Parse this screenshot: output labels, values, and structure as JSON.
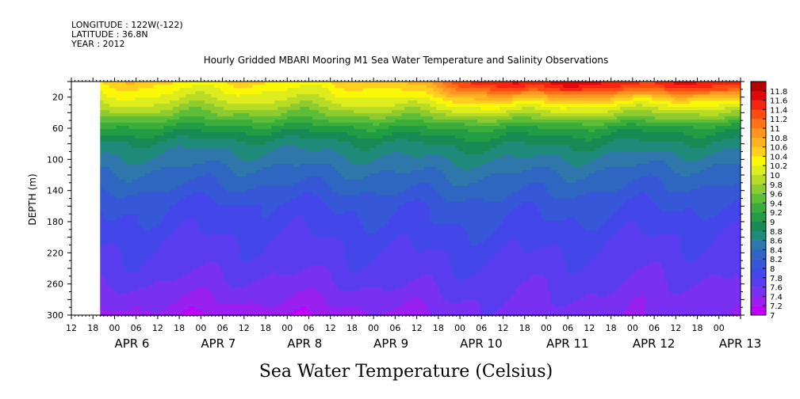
{
  "header": {
    "longitude": "LONGITUDE : 122W(-122)",
    "latitude": "LATITUDE : 36.8N",
    "year": "YEAR : 2012",
    "title": "Hourly Gridded MBARI Mooring M1 Sea Water Temperature and Salinity Observations"
  },
  "footer": {
    "variable_label": "Sea Water Temperature (Celsius)"
  },
  "chart_data": {
    "type": "heatmap",
    "title": "Hourly Gridded MBARI Mooring M1 Sea Water Temperature and Salinity Observations",
    "xlabel": "",
    "ylabel": "DEPTH (m)",
    "variable": "Sea Water Temperature (Celsius)",
    "x_axis": {
      "start": "2012-04-05 12:00",
      "end": "2012-04-13 06:00",
      "data_start": "2012-04-05 20:00",
      "tick_labels": [
        "12",
        "18",
        "00",
        "06",
        "12",
        "18",
        "00",
        "06",
        "12",
        "18",
        "00",
        "06",
        "12",
        "18",
        "00",
        "06",
        "12",
        "18",
        "00",
        "06",
        "12",
        "18",
        "00",
        "06",
        "12",
        "18",
        "00",
        "06",
        "12",
        "18",
        "00"
      ],
      "day_labels": [
        "APR 6",
        "APR 7",
        "APR 8",
        "APR 9",
        "APR 10",
        "APR 11",
        "APR 12",
        "APR 13"
      ]
    },
    "y_axis": {
      "range": [
        300,
        0
      ],
      "tick_labels": [
        "20",
        "60",
        "100",
        "140",
        "180",
        "220",
        "260",
        "300"
      ],
      "inverted": true
    },
    "colorbar": {
      "levels": [
        "7",
        "7.2",
        "7.4",
        "7.6",
        "7.8",
        "8",
        "8.2",
        "8.4",
        "8.6",
        "8.8",
        "9",
        "9.2",
        "9.4",
        "9.6",
        "9.8",
        "10",
        "10.2",
        "10.4",
        "10.6",
        "10.8",
        "11",
        "11.2",
        "11.4",
        "11.6",
        "11.8"
      ],
      "colors": [
        "#c000ff",
        "#9a20f0",
        "#7a30f0",
        "#5a3cf0",
        "#4346e8",
        "#3657d8",
        "#2f66c2",
        "#2e77ab",
        "#1f8a7a",
        "#178a55",
        "#239c46",
        "#3aad3d",
        "#5cbd38",
        "#8ccc30",
        "#b6dc28",
        "#dcec1f",
        "#f8f807",
        "#ffcf1f",
        "#ffb21f",
        "#ff9520",
        "#ff7216",
        "#ff4d10",
        "#f72410",
        "#e00808",
        "#b40000"
      ]
    },
    "depth_profile": {
      "depth_m": [
        3,
        10,
        20,
        30,
        40,
        60,
        80,
        100,
        120,
        140,
        160,
        180,
        200,
        220,
        240,
        260,
        280,
        300
      ],
      "early_temp_c": [
        10.45,
        10.3,
        10.15,
        9.95,
        9.7,
        9.15,
        8.75,
        8.55,
        8.35,
        8.2,
        8.0,
        7.95,
        7.85,
        7.78,
        7.7,
        7.6,
        7.45,
        7.3
      ],
      "late_temp_c": [
        11.6,
        11.3,
        10.7,
        10.25,
        9.9,
        9.15,
        8.8,
        8.55,
        8.35,
        8.2,
        8.05,
        7.95,
        7.85,
        7.78,
        7.7,
        7.62,
        7.55,
        7.5
      ]
    }
  }
}
